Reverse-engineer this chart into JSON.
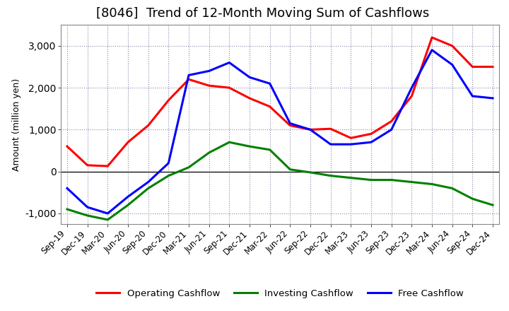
{
  "title": "[8046]  Trend of 12-Month Moving Sum of Cashflows",
  "ylabel": "Amount (million yen)",
  "background_color": "#ffffff",
  "plot_bg_color": "#ffffff",
  "grid_color": "#8888aa",
  "x_labels": [
    "Sep-19",
    "Dec-19",
    "Mar-20",
    "Jun-20",
    "Sep-20",
    "Dec-20",
    "Mar-21",
    "Jun-21",
    "Sep-21",
    "Dec-21",
    "Mar-22",
    "Jun-22",
    "Sep-22",
    "Dec-22",
    "Mar-23",
    "Jun-23",
    "Sep-23",
    "Dec-23",
    "Mar-24",
    "Jun-24",
    "Sep-24",
    "Dec-24"
  ],
  "operating_cashflow": [
    600,
    150,
    130,
    700,
    1100,
    1700,
    2200,
    2050,
    2000,
    1750,
    1550,
    1100,
    1000,
    1020,
    800,
    900,
    1200,
    1800,
    3200,
    3000,
    2500,
    2500
  ],
  "investing_cashflow": [
    -900,
    -1050,
    -1150,
    -800,
    -400,
    -100,
    100,
    450,
    700,
    600,
    520,
    50,
    -20,
    -100,
    -150,
    -200,
    -200,
    -250,
    -300,
    -400,
    -650,
    -800
  ],
  "free_cashflow": [
    -400,
    -850,
    -1000,
    -600,
    -250,
    200,
    2300,
    2400,
    2600,
    2250,
    2100,
    1150,
    1000,
    650,
    650,
    700,
    1000,
    2000,
    2900,
    2550,
    1800,
    1750
  ],
  "ylim": [
    -1250,
    3500
  ],
  "yticks": [
    -1000,
    0,
    1000,
    2000,
    3000
  ],
  "line_colors": {
    "operating": "#ff0000",
    "investing": "#008000",
    "free": "#0000ff"
  },
  "legend_labels": [
    "Operating Cashflow",
    "Investing Cashflow",
    "Free Cashflow"
  ],
  "title_fontsize": 13,
  "axis_fontsize": 9,
  "tick_fontsize": 8.5,
  "legend_fontsize": 9.5
}
